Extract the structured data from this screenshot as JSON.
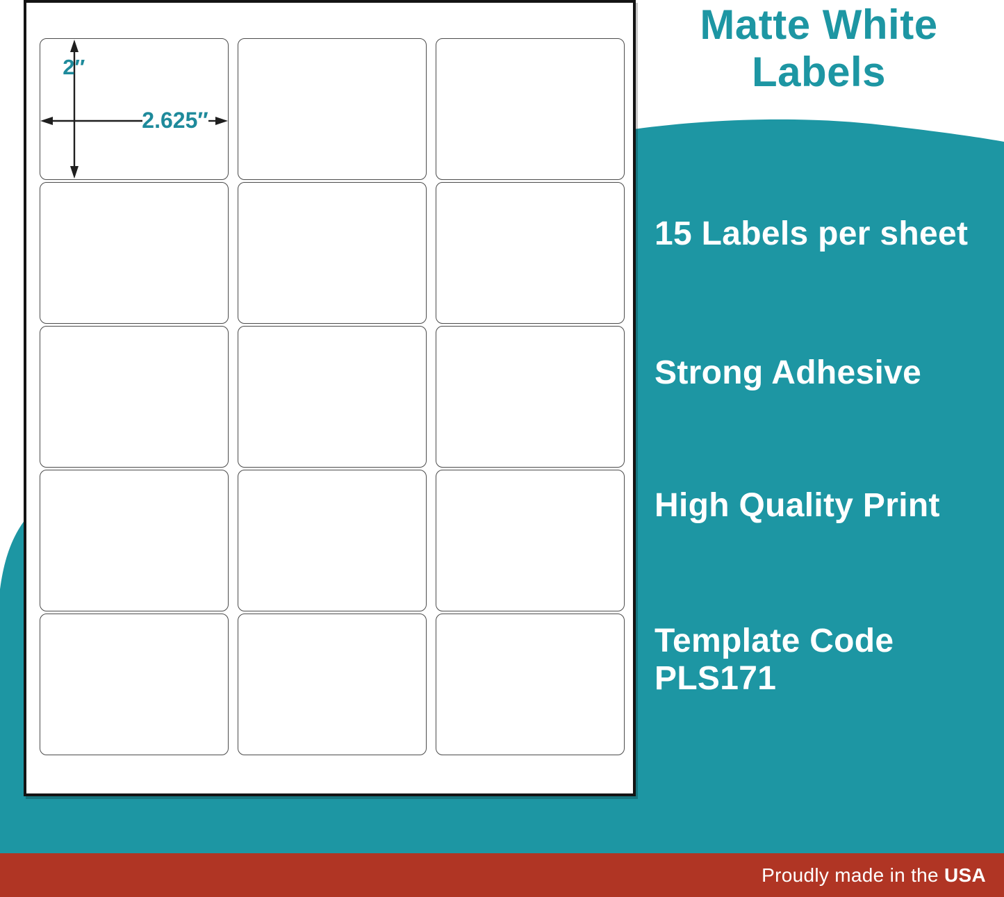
{
  "title": {
    "text": "Matte White\nLabels"
  },
  "features": [
    {
      "label": "15 Labels per sheet"
    },
    {
      "label": "Strong Adhesive"
    },
    {
      "label": "High Quality Print"
    },
    {
      "label": "Template Code\nPLS171"
    }
  ],
  "sheet": {
    "rows": 5,
    "columns": 3,
    "labels_per_sheet": 15,
    "dimensions": {
      "height": "2″",
      "width": "2.625″"
    }
  },
  "footer": {
    "prefix": "Proudly made in the ",
    "bold": "USA"
  },
  "colors": {
    "teal": "#1d96a3",
    "red": "#b03524",
    "dimension_text": "#1e8a9b",
    "sheet_border": "#141414",
    "label_border": "#4b4b4b",
    "feature_text": "#ffffff"
  }
}
